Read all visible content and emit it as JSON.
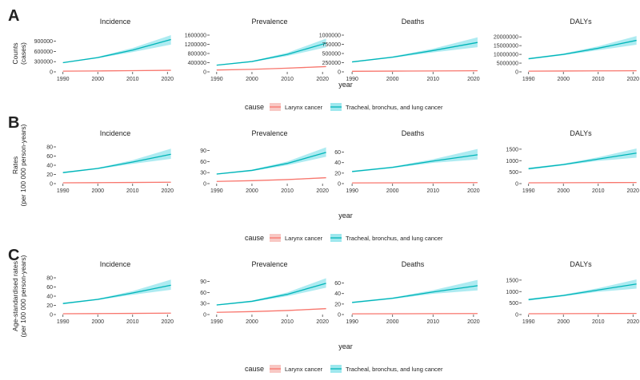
{
  "colors": {
    "larynx_line": "#F8766D",
    "larynx_band": "#F8C8C4",
    "lung_line": "#00B5B8",
    "lung_band": "#9FE8EE",
    "axis": "#444444"
  },
  "chart_data": [
    {
      "type": "line",
      "row": 0,
      "row_label": "A",
      "ylabel": [
        "Counts",
        "(cases)"
      ],
      "xlabel": "year",
      "panels": [
        {
          "title": "Incidence",
          "ylim": [
            0,
            1080000
          ],
          "yticks": [
            0,
            300000,
            600000,
            900000
          ],
          "ytick_labels": [
            "0",
            "300000",
            "600000",
            "900000"
          ],
          "series": [
            {
              "name": "Larynx cancer",
              "x": [
                1990,
                2000,
                2010,
                2021
              ],
              "y": [
                20000,
                27000,
                36000,
                45000
              ],
              "lower": [
                18000,
                24000,
                32000,
                40000
              ],
              "upper": [
                22000,
                30000,
                40000,
                52000
              ]
            },
            {
              "name": "Tracheal, bronchus, and lung cancer",
              "x": [
                1990,
                2000,
                2010,
                2021
              ],
              "y": [
                270000,
                420000,
                640000,
                950000
              ],
              "lower": [
                255000,
                400000,
                580000,
                800000
              ],
              "upper": [
                285000,
                440000,
                700000,
                1080000
              ]
            }
          ]
        },
        {
          "title": "Prevalence",
          "ylim": [
            0,
            1600000
          ],
          "yticks": [
            0,
            400000,
            800000,
            1200000,
            1600000
          ],
          "ytick_labels": [
            "0",
            "400000",
            "800000",
            "1200000",
            "1600000"
          ],
          "series": [
            {
              "name": "Larynx cancer",
              "x": [
                1990,
                2000,
                2010,
                2021
              ],
              "y": [
                80000,
                110000,
                160000,
                230000
              ],
              "lower": [
                72000,
                100000,
                145000,
                200000
              ],
              "upper": [
                88000,
                120000,
                175000,
                260000
              ]
            },
            {
              "name": "Tracheal, bronchus, and lung cancer",
              "x": [
                1990,
                2000,
                2010,
                2021
              ],
              "y": [
                290000,
                450000,
                760000,
                1250000
              ],
              "lower": [
                270000,
                425000,
                690000,
                1070000
              ],
              "upper": [
                310000,
                475000,
                830000,
                1450000
              ]
            }
          ]
        },
        {
          "title": "Deaths",
          "ylim": [
            0,
            1000000
          ],
          "yticks": [
            0,
            250000,
            500000,
            750000,
            1000000
          ],
          "ytick_labels": [
            "0",
            "250000",
            "500000",
            "750000",
            "1000000"
          ],
          "series": [
            {
              "name": "Larynx cancer",
              "x": [
                1990,
                2000,
                2010,
                2021
              ],
              "y": [
                15000,
                20000,
                25000,
                30000
              ],
              "lower": [
                13500,
                18000,
                22500,
                26500
              ],
              "upper": [
                16500,
                22000,
                27500,
                34000
              ]
            },
            {
              "name": "Tracheal, bronchus, and lung cancer",
              "x": [
                1990,
                2000,
                2010,
                2021
              ],
              "y": [
                270000,
                400000,
                580000,
                800000
              ],
              "lower": [
                255000,
                380000,
                530000,
                670000
              ],
              "upper": [
                285000,
                420000,
                630000,
                940000
              ]
            }
          ]
        },
        {
          "title": "DALYs",
          "ylim": [
            0,
            21000000
          ],
          "yticks": [
            0,
            5000000,
            10000000,
            15000000,
            20000000
          ],
          "ytick_labels": [
            "0",
            "5000000",
            "10000000",
            "15000000",
            "20000000"
          ],
          "series": [
            {
              "name": "Larynx cancer",
              "x": [
                1990,
                2000,
                2010,
                2021
              ],
              "y": [
                400000,
                480000,
                560000,
                620000
              ],
              "lower": [
                360000,
                430000,
                500000,
                550000
              ],
              "upper": [
                440000,
                530000,
                620000,
                700000
              ]
            },
            {
              "name": "Tracheal, bronchus, and lung cancer",
              "x": [
                1990,
                2000,
                2010,
                2021
              ],
              "y": [
                7500000,
                10000000,
                13500000,
                18000000
              ],
              "lower": [
                7100000,
                9500000,
                12400000,
                15500000
              ],
              "upper": [
                7900000,
                10500000,
                14600000,
                20500000
              ]
            }
          ]
        }
      ]
    },
    {
      "type": "line",
      "row": 1,
      "row_label": "B",
      "ylabel": [
        "Rates",
        "(per 100 000 person-years)"
      ],
      "xlabel": "year",
      "panels": [
        {
          "title": "Incidence",
          "ylim": [
            0,
            80
          ],
          "yticks": [
            0,
            20,
            40,
            60,
            80
          ],
          "ytick_labels": [
            "0",
            "20",
            "40",
            "60",
            "80"
          ],
          "series": [
            {
              "name": "Larynx cancer",
              "x": [
                1990,
                2000,
                2010,
                2021
              ],
              "y": [
                1.8,
                2.1,
                2.5,
                3.0
              ],
              "lower": [
                1.6,
                1.9,
                2.2,
                2.6
              ],
              "upper": [
                2.0,
                2.3,
                2.8,
                3.4
              ]
            },
            {
              "name": "Tracheal, bronchus, and lung cancer",
              "x": [
                1990,
                2000,
                2010,
                2021
              ],
              "y": [
                24,
                33,
                47,
                64
              ],
              "lower": [
                22.5,
                31.5,
                43,
                54
              ],
              "upper": [
                25.5,
                34.5,
                51,
                76
              ]
            }
          ]
        },
        {
          "title": "Prevalence",
          "ylim": [
            0,
            100
          ],
          "yticks": [
            0,
            30,
            60,
            90
          ],
          "ytick_labels": [
            "0",
            "30",
            "60",
            "90"
          ],
          "series": [
            {
              "name": "Larynx cancer",
              "x": [
                1990,
                2000,
                2010,
                2021
              ],
              "y": [
                6,
                8,
                11,
                16
              ],
              "lower": [
                5.4,
                7.2,
                10,
                14
              ],
              "upper": [
                6.6,
                8.8,
                12,
                18
              ]
            },
            {
              "name": "Tracheal, bronchus, and lung cancer",
              "x": [
                1990,
                2000,
                2010,
                2021
              ],
              "y": [
                26,
                36,
                55,
                85
              ],
              "lower": [
                24.5,
                34,
                50,
                73
              ],
              "upper": [
                27.5,
                38,
                60,
                99
              ]
            }
          ]
        },
        {
          "title": "Deaths",
          "ylim": [
            0,
            70
          ],
          "yticks": [
            0,
            20,
            40,
            60
          ],
          "ytick_labels": [
            "0",
            "20",
            "40",
            "60"
          ],
          "series": [
            {
              "name": "Larynx cancer",
              "x": [
                1990,
                2000,
                2010,
                2021
              ],
              "y": [
                1.3,
                1.5,
                1.7,
                1.9
              ],
              "lower": [
                1.2,
                1.35,
                1.5,
                1.6
              ],
              "upper": [
                1.4,
                1.65,
                1.9,
                2.2
              ]
            },
            {
              "name": "Tracheal, bronchus, and lung cancer",
              "x": [
                1990,
                2000,
                2010,
                2021
              ],
              "y": [
                23,
                31,
                43,
                55
              ],
              "lower": [
                21.5,
                29.5,
                39.5,
                46
              ],
              "upper": [
                24.5,
                32.5,
                46.5,
                66
              ]
            }
          ]
        },
        {
          "title": "DALYs",
          "ylim": [
            0,
            1600
          ],
          "yticks": [
            0,
            500,
            1000,
            1500
          ],
          "ytick_labels": [
            "0",
            "500",
            "1000",
            "1500"
          ],
          "series": [
            {
              "name": "Larynx cancer",
              "x": [
                1990,
                2000,
                2010,
                2021
              ],
              "y": [
                35,
                40,
                44,
                47
              ],
              "lower": [
                31,
                36,
                39,
                41
              ],
              "upper": [
                39,
                44,
                49,
                53
              ]
            },
            {
              "name": "Tracheal, bronchus, and lung cancer",
              "x": [
                1990,
                2000,
                2010,
                2021
              ],
              "y": [
                650,
                830,
                1070,
                1330
              ],
              "lower": [
                610,
                790,
                990,
                1130
              ],
              "upper": [
                690,
                870,
                1150,
                1530
              ]
            }
          ]
        }
      ]
    },
    {
      "type": "line",
      "row": 2,
      "row_label": "C",
      "ylabel": [
        "Age-standardised rates",
        "(per 100 000 person-years)"
      ],
      "xlabel": "year",
      "panels": [
        {
          "title": "Incidence",
          "ylim": [
            0,
            80
          ],
          "yticks": [
            0,
            20,
            40,
            60,
            80
          ],
          "ytick_labels": [
            "0",
            "20",
            "40",
            "60",
            "80"
          ],
          "series": [
            {
              "name": "Larynx cancer",
              "x": [
                1990,
                2000,
                2010,
                2021
              ],
              "y": [
                1.8,
                2.1,
                2.5,
                3.0
              ],
              "lower": [
                1.6,
                1.9,
                2.2,
                2.6
              ],
              "upper": [
                2.0,
                2.3,
                2.8,
                3.4
              ]
            },
            {
              "name": "Tracheal, bronchus, and lung cancer",
              "x": [
                1990,
                2000,
                2010,
                2021
              ],
              "y": [
                24,
                33,
                47,
                64
              ],
              "lower": [
                22.5,
                31.5,
                43,
                54
              ],
              "upper": [
                25.5,
                34.5,
                51,
                76
              ]
            }
          ]
        },
        {
          "title": "Prevalence",
          "ylim": [
            0,
            100
          ],
          "yticks": [
            0,
            30,
            60,
            90
          ],
          "ytick_labels": [
            "0",
            "30",
            "60",
            "90"
          ],
          "series": [
            {
              "name": "Larynx cancer",
              "x": [
                1990,
                2000,
                2010,
                2021
              ],
              "y": [
                6,
                8,
                11,
                16
              ],
              "lower": [
                5.4,
                7.2,
                10,
                14
              ],
              "upper": [
                6.6,
                8.8,
                12,
                18
              ]
            },
            {
              "name": "Tracheal, bronchus, and lung cancer",
              "x": [
                1990,
                2000,
                2010,
                2021
              ],
              "y": [
                26,
                36,
                55,
                85
              ],
              "lower": [
                24.5,
                34,
                50,
                73
              ],
              "upper": [
                27.5,
                38,
                60,
                99
              ]
            }
          ]
        },
        {
          "title": "Deaths",
          "ylim": [
            0,
            70
          ],
          "yticks": [
            0,
            20,
            40,
            60
          ],
          "ytick_labels": [
            "0",
            "20",
            "40",
            "60"
          ],
          "series": [
            {
              "name": "Larynx cancer",
              "x": [
                1990,
                2000,
                2010,
                2021
              ],
              "y": [
                1.3,
                1.5,
                1.7,
                1.9
              ],
              "lower": [
                1.2,
                1.35,
                1.5,
                1.6
              ],
              "upper": [
                1.4,
                1.65,
                1.9,
                2.2
              ]
            },
            {
              "name": "Tracheal, bronchus, and lung cancer",
              "x": [
                1990,
                2000,
                2010,
                2021
              ],
              "y": [
                23,
                31,
                43,
                55
              ],
              "lower": [
                21.5,
                29.5,
                39.5,
                46
              ],
              "upper": [
                24.5,
                32.5,
                46.5,
                66
              ]
            }
          ]
        },
        {
          "title": "DALYs",
          "ylim": [
            0,
            1600
          ],
          "yticks": [
            0,
            500,
            1000,
            1500
          ],
          "ytick_labels": [
            "0",
            "500",
            "1000",
            "1500"
          ],
          "series": [
            {
              "name": "Larynx cancer",
              "x": [
                1990,
                2000,
                2010,
                2021
              ],
              "y": [
                35,
                40,
                44,
                47
              ],
              "lower": [
                31,
                36,
                39,
                41
              ],
              "upper": [
                39,
                44,
                49,
                53
              ]
            },
            {
              "name": "Tracheal, bronchus, and lung cancer",
              "x": [
                1990,
                2000,
                2010,
                2021
              ],
              "y": [
                650,
                830,
                1070,
                1330
              ],
              "lower": [
                610,
                790,
                990,
                1130
              ],
              "upper": [
                690,
                870,
                1150,
                1530
              ]
            }
          ]
        }
      ]
    }
  ],
  "shared_axes": {
    "xlim": [
      1988,
      2022
    ],
    "xticks": [
      1990,
      2000,
      2010,
      2020
    ],
    "xtick_labels": [
      "1990",
      "2000",
      "2010",
      "2020"
    ]
  },
  "legend": {
    "title": "cause",
    "items": [
      "Larynx cancer",
      "Tracheal, bronchus, and lung cancer"
    ]
  }
}
